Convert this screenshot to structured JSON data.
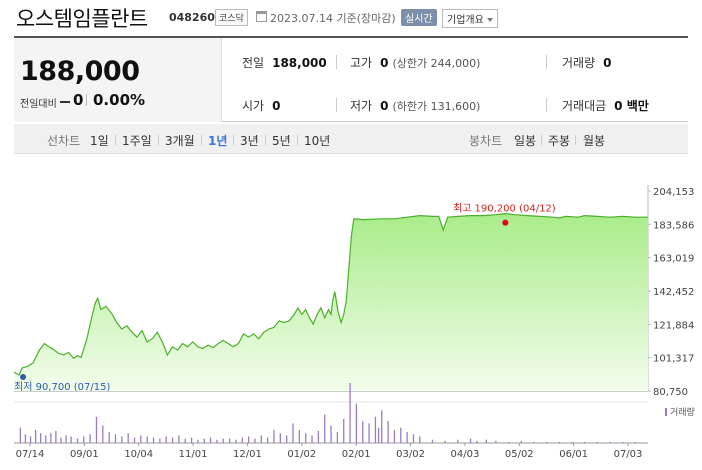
{
  "header": {
    "company_name": "오스템임플란트",
    "code": "048260",
    "market": "코스닥",
    "date": "2023.07.14 기준(장마감)",
    "realtime_label": "실시간",
    "company_info_label": "기업개요"
  },
  "summary": {
    "price": "188,000",
    "change_label": "전일대비",
    "change_value": "0",
    "change_rate": "0.00%",
    "prev_close_label": "전일",
    "prev_close": "188,000",
    "open_label": "시가",
    "open": "0",
    "high_label": "고가",
    "high": "0",
    "high_limit": "(상한가 244,000)",
    "low_label": "저가",
    "low": "0",
    "low_limit": "(하한가 131,600)",
    "volume_label": "거래량",
    "volume": "0",
    "amount_label": "거래대금",
    "amount": "0 백만"
  },
  "period_bar": {
    "line_label": "선차트",
    "periods": [
      "1일",
      "1주일",
      "3개월",
      "1년",
      "3년",
      "5년",
      "10년"
    ],
    "active_period": "1년",
    "candle_label": "봉차트",
    "candles": [
      "일봉",
      "주봉",
      "월봉"
    ]
  },
  "colors": {
    "line": "#4caf2a",
    "fill_top": "#a9ec8a",
    "fill_bottom": "#f2fdec",
    "volume": "#9b7cc2",
    "max_dot": "#e3001b",
    "min_dot": "#2a5ca8",
    "max_text": "#d8261e",
    "min_text": "#2a5ca8",
    "active": "#3a74d6"
  },
  "chart_data": {
    "type": "area",
    "x_ticks": [
      "07/14",
      "09/01",
      "10/04",
      "11/01",
      "12/01",
      "01/02",
      "02/01",
      "03/02",
      "04/03",
      "05/02",
      "06/01",
      "07/03"
    ],
    "y_ticks": [
      "204,153",
      "183,586",
      "163,019",
      "142,452",
      "121,884",
      "101,317",
      "80,750"
    ],
    "ylim": [
      80750,
      204153
    ],
    "max_label": "최고 190,200 (04/12)",
    "min_label": "최저 90,700 (07/15)",
    "volume_legend": "거래량",
    "max_point": {
      "date": "04/12",
      "value": 190200
    },
    "min_point": {
      "date": "07/15",
      "value": 90700
    },
    "price_points": [
      [
        0,
        92500
      ],
      [
        0.004,
        91500
      ],
      [
        0.008,
        90700
      ],
      [
        0.013,
        95000
      ],
      [
        0.022,
        96000
      ],
      [
        0.03,
        98000
      ],
      [
        0.04,
        106000
      ],
      [
        0.048,
        110000
      ],
      [
        0.055,
        108000
      ],
      [
        0.062,
        106500
      ],
      [
        0.07,
        104000
      ],
      [
        0.078,
        103000
      ],
      [
        0.086,
        104500
      ],
      [
        0.094,
        101000
      ],
      [
        0.1,
        102500
      ],
      [
        0.106,
        101500
      ],
      [
        0.115,
        113000
      ],
      [
        0.122,
        125000
      ],
      [
        0.128,
        135000
      ],
      [
        0.132,
        138000
      ],
      [
        0.137,
        131000
      ],
      [
        0.145,
        133000
      ],
      [
        0.155,
        128000
      ],
      [
        0.162,
        123000
      ],
      [
        0.17,
        119000
      ],
      [
        0.178,
        121000
      ],
      [
        0.186,
        117000
      ],
      [
        0.194,
        114000
      ],
      [
        0.202,
        118000
      ],
      [
        0.21,
        111000
      ],
      [
        0.218,
        113000
      ],
      [
        0.226,
        117000
      ],
      [
        0.234,
        111000
      ],
      [
        0.242,
        103000
      ],
      [
        0.25,
        108000
      ],
      [
        0.258,
        106000
      ],
      [
        0.266,
        110000
      ],
      [
        0.274,
        108000
      ],
      [
        0.282,
        111000
      ],
      [
        0.29,
        108000
      ],
      [
        0.298,
        107000
      ],
      [
        0.306,
        109000
      ],
      [
        0.314,
        107500
      ],
      [
        0.322,
        110000
      ],
      [
        0.33,
        112000
      ],
      [
        0.338,
        110000
      ],
      [
        0.346,
        108000
      ],
      [
        0.354,
        110000
      ],
      [
        0.362,
        116000
      ],
      [
        0.37,
        114000
      ],
      [
        0.378,
        116000
      ],
      [
        0.386,
        113000
      ],
      [
        0.394,
        117000
      ],
      [
        0.402,
        119000
      ],
      [
        0.41,
        120000
      ],
      [
        0.418,
        124000
      ],
      [
        0.426,
        123000
      ],
      [
        0.434,
        124000
      ],
      [
        0.442,
        128000
      ],
      [
        0.448,
        132000
      ],
      [
        0.454,
        128000
      ],
      [
        0.46,
        131000
      ],
      [
        0.466,
        126000
      ],
      [
        0.472,
        122000
      ],
      [
        0.478,
        128000
      ],
      [
        0.484,
        132000
      ],
      [
        0.49,
        126000
      ],
      [
        0.496,
        131000
      ],
      [
        0.5,
        128000
      ],
      [
        0.503,
        137000
      ],
      [
        0.506,
        142000
      ],
      [
        0.511,
        130000
      ],
      [
        0.516,
        123000
      ],
      [
        0.52,
        128000
      ],
      [
        0.524,
        136000
      ],
      [
        0.528,
        156000
      ],
      [
        0.532,
        176000
      ],
      [
        0.536,
        187000
      ],
      [
        0.55,
        186500
      ],
      [
        0.58,
        187000
      ],
      [
        0.6,
        187000
      ],
      [
        0.62,
        188000
      ],
      [
        0.64,
        189000
      ],
      [
        0.66,
        188500
      ],
      [
        0.67,
        188500
      ],
      [
        0.677,
        180000
      ],
      [
        0.684,
        188000
      ],
      [
        0.7,
        188500
      ],
      [
        0.72,
        189000
      ],
      [
        0.74,
        189000
      ],
      [
        0.76,
        189500
      ],
      [
        0.775,
        190200
      ],
      [
        0.79,
        189500
      ],
      [
        0.81,
        189000
      ],
      [
        0.83,
        188500
      ],
      [
        0.85,
        188000
      ],
      [
        0.86,
        187500
      ],
      [
        0.87,
        188500
      ],
      [
        0.89,
        188000
      ],
      [
        0.9,
        189000
      ],
      [
        0.92,
        188500
      ],
      [
        0.94,
        188000
      ],
      [
        0.96,
        188500
      ],
      [
        0.98,
        188000
      ],
      [
        1.0,
        188000
      ]
    ],
    "volume_bars": [
      [
        0.01,
        14
      ],
      [
        0.018,
        8
      ],
      [
        0.026,
        6
      ],
      [
        0.034,
        12
      ],
      [
        0.042,
        9
      ],
      [
        0.05,
        7
      ],
      [
        0.058,
        9
      ],
      [
        0.066,
        11
      ],
      [
        0.074,
        5
      ],
      [
        0.082,
        7
      ],
      [
        0.09,
        6
      ],
      [
        0.1,
        4
      ],
      [
        0.11,
        6
      ],
      [
        0.12,
        8
      ],
      [
        0.13,
        24
      ],
      [
        0.14,
        16
      ],
      [
        0.15,
        10
      ],
      [
        0.16,
        8
      ],
      [
        0.17,
        6
      ],
      [
        0.18,
        9
      ],
      [
        0.19,
        5
      ],
      [
        0.2,
        7
      ],
      [
        0.21,
        6
      ],
      [
        0.22,
        5
      ],
      [
        0.23,
        4
      ],
      [
        0.24,
        6
      ],
      [
        0.25,
        5
      ],
      [
        0.26,
        7
      ],
      [
        0.27,
        4
      ],
      [
        0.28,
        5
      ],
      [
        0.29,
        3
      ],
      [
        0.3,
        4
      ],
      [
        0.31,
        5
      ],
      [
        0.32,
        3
      ],
      [
        0.33,
        4
      ],
      [
        0.34,
        4
      ],
      [
        0.35,
        3
      ],
      [
        0.36,
        5
      ],
      [
        0.37,
        6
      ],
      [
        0.38,
        4
      ],
      [
        0.39,
        7
      ],
      [
        0.4,
        5
      ],
      [
        0.41,
        12
      ],
      [
        0.42,
        9
      ],
      [
        0.43,
        7
      ],
      [
        0.44,
        18
      ],
      [
        0.45,
        12
      ],
      [
        0.46,
        9
      ],
      [
        0.47,
        7
      ],
      [
        0.48,
        11
      ],
      [
        0.49,
        26
      ],
      [
        0.5,
        16
      ],
      [
        0.51,
        10
      ],
      [
        0.52,
        22
      ],
      [
        0.53,
        55
      ],
      [
        0.54,
        36
      ],
      [
        0.55,
        20
      ],
      [
        0.56,
        18
      ],
      [
        0.57,
        24
      ],
      [
        0.575,
        14
      ],
      [
        0.58,
        30
      ],
      [
        0.59,
        20
      ],
      [
        0.6,
        12
      ],
      [
        0.61,
        14
      ],
      [
        0.62,
        10
      ],
      [
        0.63,
        8
      ],
      [
        0.64,
        6
      ],
      [
        0.66,
        3
      ],
      [
        0.68,
        2
      ],
      [
        0.7,
        3
      ],
      [
        0.72,
        4
      ],
      [
        0.73,
        2
      ],
      [
        0.745,
        3
      ],
      [
        0.76,
        2
      ],
      [
        0.78,
        1
      ],
      [
        0.8,
        2
      ],
      [
        0.82,
        1
      ],
      [
        0.84,
        1
      ],
      [
        0.86,
        1
      ],
      [
        0.88,
        1
      ],
      [
        0.9,
        1
      ],
      [
        0.92,
        1
      ],
      [
        0.94,
        1
      ],
      [
        0.96,
        1
      ],
      [
        0.98,
        1
      ]
    ]
  }
}
